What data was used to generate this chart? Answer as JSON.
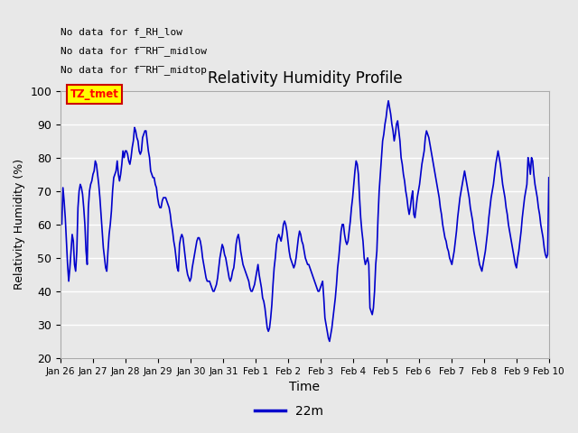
{
  "title": "Relativity Humidity Profile",
  "xlabel": "Time",
  "ylabel": "Relativity Humidity (%)",
  "ylim": [
    20,
    100
  ],
  "yticks": [
    20,
    30,
    40,
    50,
    60,
    70,
    80,
    90,
    100
  ],
  "line_color": "#0000CC",
  "line_width": 1.2,
  "fig_bg_color": "#E8E8E8",
  "plot_bg_color": "#E8E8E8",
  "annotations": [
    "No data for f_RH_low",
    "No data for f̅RH̅_midlow",
    "No data for f̅RH̅_midtop"
  ],
  "legend_label": "22m",
  "tz_label": "TZ_tmet",
  "x_tick_labels": [
    "Jan 26",
    "Jan 27",
    "Jan 28",
    "Jan 29",
    "Jan 30",
    "Jan 31",
    "Feb 1",
    "Feb 2",
    "Feb 3",
    "Feb 4",
    "Feb 5",
    "Feb 6",
    "Feb 7",
    "Feb 8",
    "Feb 9",
    "Feb 10"
  ],
  "humidity_values": [
    61,
    60,
    71,
    67,
    62,
    55,
    48,
    43,
    47,
    52,
    57,
    55,
    48,
    46,
    52,
    65,
    70,
    72,
    71,
    69,
    65,
    60,
    52,
    48,
    65,
    70,
    72,
    73,
    75,
    76,
    79,
    78,
    75,
    72,
    68,
    63,
    58,
    53,
    50,
    47,
    46,
    52,
    57,
    60,
    64,
    70,
    74,
    75,
    76,
    79,
    75,
    73,
    75,
    78,
    82,
    80,
    82,
    82,
    81,
    79,
    78,
    80,
    83,
    85,
    89,
    88,
    86,
    85,
    82,
    81,
    82,
    86,
    87,
    88,
    88,
    85,
    82,
    80,
    76,
    75,
    74,
    74,
    72,
    71,
    68,
    66,
    65,
    65,
    67,
    68,
    68,
    68,
    67,
    66,
    65,
    63,
    60,
    58,
    55,
    53,
    50,
    47,
    46,
    54,
    56,
    57,
    56,
    53,
    50,
    47,
    45,
    44,
    43,
    44,
    47,
    49,
    51,
    53,
    55,
    56,
    56,
    55,
    53,
    50,
    48,
    46,
    44,
    43,
    43,
    43,
    42,
    41,
    40,
    40,
    41,
    42,
    44,
    47,
    50,
    52,
    54,
    53,
    51,
    50,
    48,
    46,
    44,
    43,
    44,
    46,
    47,
    50,
    54,
    56,
    57,
    55,
    52,
    50,
    48,
    47,
    46,
    45,
    44,
    43,
    41,
    40,
    40,
    41,
    42,
    44,
    46,
    48,
    45,
    43,
    41,
    38,
    37,
    35,
    32,
    29,
    28,
    29,
    32,
    36,
    42,
    47,
    50,
    54,
    56,
    57,
    56,
    55,
    57,
    60,
    61,
    60,
    58,
    55,
    52,
    50,
    49,
    48,
    47,
    48,
    50,
    53,
    56,
    58,
    57,
    55,
    54,
    52,
    50,
    49,
    48,
    48,
    47,
    46,
    45,
    44,
    43,
    42,
    41,
    40,
    40,
    41,
    42,
    43,
    38,
    32,
    30,
    28,
    26,
    25,
    27,
    29,
    32,
    35,
    38,
    42,
    47,
    50,
    54,
    58,
    60,
    60,
    57,
    55,
    54,
    55,
    58,
    61,
    65,
    68,
    72,
    76,
    79,
    78,
    75,
    68,
    62,
    58,
    55,
    50,
    48,
    49,
    50,
    48,
    35,
    34,
    33,
    35,
    40,
    48,
    52,
    62,
    70,
    75,
    80,
    85,
    87,
    90,
    92,
    95,
    97,
    95,
    93,
    90,
    88,
    85,
    87,
    90,
    91,
    88,
    85,
    80,
    78,
    75,
    73,
    70,
    68,
    65,
    63,
    65,
    68,
    70,
    63,
    62,
    65,
    68,
    70,
    72,
    75,
    78,
    80,
    82,
    86,
    88,
    87,
    86,
    84,
    82,
    80,
    78,
    76,
    74,
    72,
    70,
    68,
    65,
    63,
    60,
    58,
    56,
    55,
    53,
    52,
    50,
    49,
    48,
    50,
    52,
    55,
    58,
    62,
    65,
    68,
    70,
    72,
    74,
    76,
    74,
    72,
    70,
    68,
    65,
    63,
    61,
    58,
    56,
    54,
    52,
    50,
    48,
    47,
    46,
    48,
    50,
    52,
    55,
    58,
    62,
    65,
    68,
    70,
    72,
    75,
    78,
    80,
    82,
    80,
    78,
    75,
    72,
    70,
    68,
    65,
    63,
    60,
    58,
    56,
    54,
    52,
    50,
    48,
    47,
    50,
    52,
    55,
    58,
    62,
    65,
    68,
    70,
    72,
    80,
    78,
    75,
    80,
    79,
    75,
    72,
    70,
    68,
    65,
    63,
    60,
    58,
    56,
    53,
    51,
    50,
    51,
    74
  ]
}
